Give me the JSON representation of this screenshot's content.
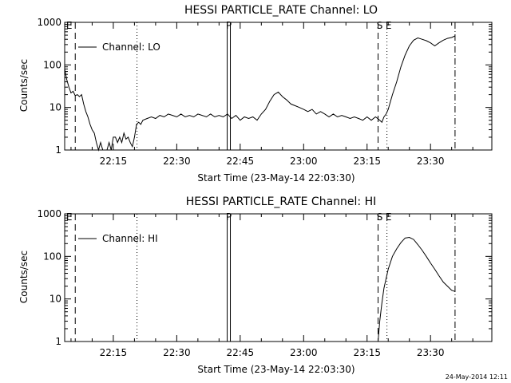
{
  "footer": {
    "timestamp": "24-May-2014 12:11"
  },
  "chart_data": [
    {
      "type": "line",
      "title": "HESSI PARTICLE_RATE Channel: LO",
      "xlabel": "Start Time (23-May-14 22:03:30)",
      "ylabel": "Counts/sec",
      "yscale": "log",
      "ylim": [
        1,
        1000
      ],
      "yticks": [
        "1",
        "10",
        "100",
        "1000"
      ],
      "xticks": [
        "22:15",
        "22:30",
        "22:45",
        "23:00",
        "23:15",
        "23:30"
      ],
      "xticks_min": [
        1335,
        1350,
        1365,
        1380,
        1395,
        1410
      ],
      "xlim_min": [
        1323.5,
        1424.5
      ],
      "grid": false,
      "legend": {
        "label": "Channel: LO",
        "placement": "top-left"
      },
      "markers": [
        {
          "label": "E",
          "x_min": 1324.2,
          "style": "label"
        },
        {
          "label": "",
          "x_min": 1326.0,
          "style": "dashed"
        },
        {
          "label": "",
          "x_min": 1340.6,
          "style": "dotted"
        },
        {
          "label": "P",
          "x_min": 1362.3,
          "style": "solid-double"
        },
        {
          "label": "S",
          "x_min": 1397.6,
          "style": "dashed"
        },
        {
          "label": "E",
          "x_min": 1399.7,
          "style": "dotted"
        },
        {
          "label": "",
          "x_min": 1415.8,
          "style": "dashdot"
        }
      ],
      "series": [
        {
          "name": "Channel: LO",
          "x": [
            1323.5,
            1324.0,
            1324.5,
            1325.0,
            1325.5,
            1326.0,
            1326.5,
            1327.0,
            1327.5,
            1328.0,
            1328.5,
            1329.0,
            1329.5,
            1330.0,
            1330.5,
            1331.0,
            1331.5,
            1332.0,
            1332.5,
            1333.0,
            1333.5,
            1334.0,
            1334.5,
            1335.0,
            1335.5,
            1336.0,
            1336.5,
            1337.0,
            1337.5,
            1338.0,
            1338.5,
            1339.0,
            1339.5,
            1340.0,
            1340.5,
            1341.0,
            1341.5,
            1342.0,
            1343.0,
            1344.0,
            1345.0,
            1346.0,
            1347.0,
            1348.0,
            1349.0,
            1350.0,
            1351.0,
            1352.0,
            1353.0,
            1354.0,
            1355.0,
            1356.0,
            1357.0,
            1358.0,
            1359.0,
            1360.0,
            1361.0,
            1362.0,
            1363.0,
            1364.0,
            1365.0,
            1366.0,
            1367.0,
            1368.0,
            1369.0,
            1370.0,
            1371.0,
            1372.0,
            1373.0,
            1374.0,
            1375.0,
            1376.0,
            1377.0,
            1378.0,
            1379.0,
            1380.0,
            1381.0,
            1382.0,
            1383.0,
            1384.0,
            1385.0,
            1386.0,
            1387.0,
            1388.0,
            1389.0,
            1390.0,
            1391.0,
            1392.0,
            1393.0,
            1394.0,
            1395.0,
            1396.0,
            1397.0,
            1397.5,
            1398.0,
            1398.5,
            1399.0,
            1399.5,
            1400.0,
            1401.0,
            1402.0,
            1403.0,
            1404.0,
            1405.0,
            1406.0,
            1407.0,
            1408.0,
            1409.0,
            1410.0,
            1411.0,
            1412.0,
            1413.0,
            1414.0,
            1415.0,
            1415.8
          ],
          "y": [
            80,
            45,
            30,
            22,
            24,
            19,
            20,
            18,
            20,
            12,
            8,
            6,
            4,
            3,
            2.5,
            1.5,
            1,
            1.5,
            1,
            1,
            1,
            1.5,
            1,
            2,
            2,
            1.5,
            2,
            1.5,
            2.5,
            1.8,
            2,
            1.5,
            1.2,
            2,
            4,
            4.5,
            4,
            5,
            5.5,
            6,
            5.5,
            6.5,
            6,
            7,
            6.5,
            6,
            7,
            6,
            6.5,
            6,
            7,
            6.5,
            6,
            7,
            6,
            6.5,
            6,
            7,
            5.5,
            6.5,
            5,
            6,
            5.5,
            6,
            5,
            7,
            9,
            14,
            20,
            23,
            18,
            15,
            12,
            11,
            10,
            9,
            8,
            9,
            7,
            8,
            7,
            6,
            7,
            6,
            6.5,
            6,
            5.5,
            6,
            5.5,
            5,
            6,
            5,
            6,
            5.5,
            5,
            4.5,
            6,
            7,
            9,
            20,
            40,
            90,
            170,
            280,
            380,
            430,
            400,
            370,
            330,
            280,
            330,
            380,
            420,
            440,
            480
          ]
        }
      ]
    },
    {
      "type": "line",
      "title": "HESSI PARTICLE_RATE Channel: HI",
      "xlabel": "Start Time (23-May-14 22:03:30)",
      "ylabel": "Counts/sec",
      "yscale": "log",
      "ylim": [
        1,
        1000
      ],
      "yticks": [
        "1",
        "10",
        "100",
        "1000"
      ],
      "xticks": [
        "22:15",
        "22:30",
        "22:45",
        "23:00",
        "23:15",
        "23:30"
      ],
      "xticks_min": [
        1335,
        1350,
        1365,
        1380,
        1395,
        1410
      ],
      "xlim_min": [
        1323.5,
        1424.5
      ],
      "grid": false,
      "legend": {
        "label": "Channel: HI",
        "placement": "top-left"
      },
      "markers": [
        {
          "label": "E",
          "x_min": 1324.2,
          "style": "label"
        },
        {
          "label": "",
          "x_min": 1326.0,
          "style": "dashed"
        },
        {
          "label": "",
          "x_min": 1340.6,
          "style": "dotted"
        },
        {
          "label": "P",
          "x_min": 1362.3,
          "style": "solid-double"
        },
        {
          "label": "S",
          "x_min": 1397.6,
          "style": "dashed"
        },
        {
          "label": "E",
          "x_min": 1399.7,
          "style": "dotted"
        },
        {
          "label": "",
          "x_min": 1415.8,
          "style": "dashdot"
        }
      ],
      "series": [
        {
          "name": "Channel: HI",
          "x": [
            1397.6,
            1398.0,
            1398.5,
            1399.0,
            1400.0,
            1401.0,
            1402.0,
            1403.0,
            1404.0,
            1405.0,
            1406.0,
            1407.0,
            1408.0,
            1409.0,
            1410.0,
            1411.0,
            1412.0,
            1413.0,
            1414.0,
            1415.0,
            1415.8
          ],
          "y": [
            1,
            3,
            8,
            18,
            50,
            100,
            150,
            210,
            270,
            280,
            250,
            190,
            140,
            100,
            70,
            50,
            35,
            25,
            20,
            16,
            15
          ]
        }
      ]
    }
  ]
}
